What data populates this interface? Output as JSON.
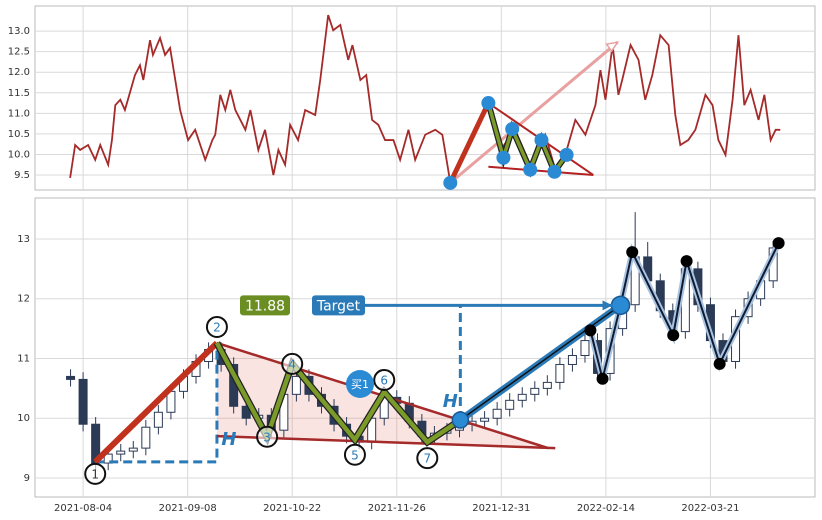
{
  "chart_data": [
    {
      "type": "line",
      "color": "#a52a2a",
      "x": [
        -3.1,
        -1.9,
        -0.7,
        1.2,
        2.9,
        4.1,
        6.0,
        6.9,
        7.7,
        8.9,
        10.0,
        12.4,
        13.6,
        14.4,
        16.0,
        16.7,
        18.4,
        19.6,
        20.8,
        23.2,
        25.1,
        26.8,
        29.2,
        30.9,
        31.6,
        32.8,
        34.0,
        35.2,
        36.4,
        38.8,
        40.0,
        41.9,
        43.5,
        45.5,
        46.7,
        48.3,
        49.5,
        51.4,
        53.1,
        55.5,
        56.7,
        58.6,
        59.8,
        61.5,
        63.4,
        64.4,
        66.3,
        67.7,
        69.1,
        70.6,
        72.2,
        74.2,
        75.8,
        77.8,
        79.4,
        81.8,
        84.2,
        85.9,
        87.1,
        87.8,
        96.9,
        99.8,
        103.3,
        106.9,
        110.5,
        112.9,
        115.3,
        117.7,
        120.1,
        122.5,
        123.7,
        124.9,
        126.6,
        128.0,
        128.9,
        130.9,
        132.8,
        134.4,
        136.1,
        138.0,
        140.0,
        141.6,
        142.8,
        144.7,
        146.4,
        148.8,
        150.5,
        151.9,
        153.6,
        155.3,
        156.7,
        158.1,
        159.6,
        161.5,
        162.9,
        164.4,
        165.6,
        166.7
      ],
      "values": [
        9.43,
        10.23,
        10.11,
        10.23,
        9.87,
        10.23,
        9.75,
        10.35,
        11.2,
        11.33,
        11.08,
        11.93,
        12.17,
        11.81,
        12.78,
        12.42,
        12.83,
        12.42,
        12.59,
        11.08,
        10.35,
        10.6,
        9.87,
        10.35,
        10.48,
        11.45,
        11.08,
        11.57,
        11.08,
        10.6,
        11.08,
        10.11,
        10.6,
        9.5,
        10.11,
        9.75,
        10.72,
        10.35,
        11.08,
        10.96,
        11.81,
        13.39,
        13.02,
        13.15,
        12.3,
        12.66,
        11.81,
        11.93,
        10.84,
        10.72,
        10.35,
        10.35,
        9.87,
        10.6,
        9.87,
        10.48,
        10.6,
        10.48,
        9.75,
        9.31,
        11.2,
        10.11,
        10.6,
        9.75,
        10.48,
        9.63,
        9.99,
        10.84,
        10.48,
        11.2,
        12.05,
        11.33,
        12.66,
        11.45,
        11.81,
        12.66,
        12.3,
        11.33,
        11.93,
        12.9,
        12.66,
        10.96,
        10.23,
        10.35,
        10.6,
        11.45,
        11.2,
        10.35,
        9.99,
        11.33,
        12.9,
        11.2,
        11.57,
        10.84,
        11.45,
        10.35,
        10.6,
        10.6
      ],
      "xlim": [
        -11.5,
        175
      ],
      "xticks": [
        0,
        25,
        50,
        75,
        100,
        125,
        150
      ],
      "ylim": [
        9.136,
        13.61
      ],
      "yticks": [
        9.5,
        {
          "value": 10,
          "label": "10.0"
        },
        10.5,
        {
          "value": 11,
          "label": "11.0"
        },
        11.5,
        {
          "value": 12,
          "label": "12.0"
        },
        12.5,
        {
          "value": 13,
          "label": "13.0"
        }
      ],
      "grid": true,
      "pattern": {
        "x": [
          87.8,
          96.9,
          100.5,
          102.6,
          106.9,
          109.6,
          112.7,
          115.6
        ],
        "y": [
          9.31,
          11.25,
          9.92,
          10.62,
          9.63,
          10.35,
          9.58,
          9.99
        ]
      },
      "upper_trendline": {
        "x": [
          96.9,
          122
        ],
        "y": [
          11.25,
          9.5
        ]
      },
      "lower_trendline": {
        "x": [
          96.9,
          122
        ],
        "y": [
          9.7,
          9.5
        ]
      },
      "arrow": {
        "x": [
          87.8,
          127.8
        ],
        "y": [
          9.31,
          12.73
        ]
      }
    },
    {
      "type": "candlestick",
      "up_color": "#ffffff",
      "down_color": "#2b3a55",
      "x": [
        -3,
        0,
        3,
        6,
        9,
        12,
        15,
        18,
        21,
        24,
        27,
        30,
        33,
        36,
        39,
        42,
        45,
        48,
        51,
        54,
        57,
        60,
        63,
        66,
        69,
        72,
        75,
        78,
        81,
        84,
        87,
        90,
        93,
        96,
        99,
        102,
        105,
        108,
        111,
        114,
        117,
        120,
        123,
        126,
        129,
        132,
        135,
        138,
        141,
        144,
        147,
        150,
        153,
        156,
        159,
        162,
        165
      ],
      "open": [
        10.7,
        10.65,
        9.9,
        9.25,
        9.4,
        9.45,
        9.5,
        9.85,
        10.1,
        10.45,
        10.7,
        10.95,
        11.15,
        10.9,
        10.2,
        10.0,
        10.05,
        9.8,
        10.4,
        10.7,
        10.4,
        10.2,
        9.9,
        9.7,
        9.6,
        10.0,
        10.35,
        10.25,
        9.95,
        9.7,
        9.75,
        9.8,
        9.9,
        9.95,
        10.0,
        10.15,
        10.3,
        10.4,
        10.5,
        10.6,
        10.9,
        11.05,
        11.3,
        10.75,
        11.5,
        11.9,
        12.7,
        12.3,
        11.8,
        11.45,
        12.5,
        11.9,
        11.3,
        10.95,
        11.7,
        12.0,
        12.3
      ],
      "high": [
        10.82,
        10.77,
        10.02,
        9.52,
        9.57,
        9.62,
        9.97,
        10.22,
        10.57,
        10.82,
        11.07,
        11.27,
        11.27,
        11.02,
        10.32,
        10.17,
        10.17,
        10.52,
        10.82,
        10.82,
        10.52,
        10.32,
        10.02,
        9.82,
        10.12,
        10.47,
        10.47,
        10.37,
        10.07,
        9.87,
        9.92,
        10.02,
        10.07,
        10.12,
        10.27,
        10.42,
        10.52,
        10.62,
        10.72,
        11.02,
        11.17,
        11.42,
        11.42,
        11.62,
        12.02,
        13.45,
        12.95,
        12.42,
        11.92,
        12.62,
        12.62,
        12.02,
        11.42,
        11.82,
        12.12,
        12.42,
        12.97
      ],
      "low": [
        10.53,
        9.78,
        9.13,
        9.13,
        9.28,
        9.33,
        9.38,
        9.73,
        9.98,
        10.33,
        10.58,
        10.83,
        10.78,
        10.08,
        9.88,
        9.88,
        9.68,
        9.68,
        10.28,
        10.28,
        10.08,
        9.78,
        9.58,
        9.48,
        9.48,
        9.88,
        10.13,
        9.83,
        9.58,
        9.58,
        9.63,
        9.68,
        9.78,
        9.83,
        9.88,
        10.03,
        10.18,
        10.28,
        10.38,
        10.48,
        10.78,
        10.93,
        10.63,
        10.63,
        11.38,
        11.78,
        12.18,
        11.68,
        11.33,
        11.33,
        11.78,
        11.18,
        10.83,
        10.83,
        11.58,
        11.88,
        12.18
      ],
      "close": [
        10.65,
        9.9,
        9.25,
        9.4,
        9.45,
        9.5,
        9.85,
        10.1,
        10.45,
        10.7,
        10.95,
        11.15,
        10.9,
        10.2,
        10.0,
        10.05,
        9.8,
        10.4,
        10.7,
        10.4,
        10.2,
        9.9,
        9.7,
        9.6,
        10.0,
        10.35,
        10.25,
        9.95,
        9.7,
        9.75,
        9.8,
        9.9,
        9.95,
        10.0,
        10.15,
        10.3,
        10.4,
        10.5,
        10.6,
        10.9,
        11.05,
        11.3,
        10.75,
        11.5,
        11.9,
        12.7,
        12.3,
        11.8,
        11.45,
        12.5,
        11.9,
        11.3,
        10.95,
        11.7,
        12.0,
        12.3,
        12.85
      ],
      "xlim": [
        -11.5,
        175
      ],
      "xticks": [
        {
          "value": 0,
          "label": "2021-08-04"
        },
        {
          "value": 25,
          "label": "2021-09-08"
        },
        {
          "value": 50,
          "label": "2021-10-22"
        },
        {
          "value": 75,
          "label": "2021-11-26"
        },
        {
          "value": 100,
          "label": "2021-12-31"
        },
        {
          "value": 125,
          "label": "2022-02-14"
        },
        {
          "value": 150,
          "label": "2022-03-21"
        }
      ],
      "ylim": [
        8.682,
        13.686
      ],
      "yticks": [
        9,
        10,
        11,
        12,
        13
      ],
      "grid": true,
      "pattern": {
        "labels": [
          "1",
          "2",
          "3",
          "4",
          "5",
          "6",
          "7"
        ],
        "x": [
          2.9,
          32,
          44,
          50,
          65,
          72,
          82.3
        ],
        "y": [
          9.27,
          11.26,
          9.69,
          10.91,
          9.64,
          10.44,
          9.6
        ]
      },
      "breakout": {
        "x": 90.2,
        "y": 9.97
      },
      "target": {
        "x": 128.5,
        "y": 11.89
      },
      "upper_trendline": {
        "x": [
          32,
          111.2
        ],
        "y": [
          11.26,
          9.5
        ]
      },
      "lower_trendline": {
        "x": [
          32,
          112.9
        ],
        "y": [
          9.7,
          9.5
        ]
      },
      "follow_through": {
        "x": [
          121.3,
          124.2,
          128.5,
          131.3,
          141.1,
          144.3,
          152.2,
          166.3
        ],
        "y": [
          11.47,
          10.66,
          11.89,
          12.78,
          11.39,
          12.63,
          10.91,
          12.93
        ]
      },
      "price_label": "11.88",
      "target_label": "Target",
      "height_label": "H",
      "buy_label": "买1"
    }
  ]
}
